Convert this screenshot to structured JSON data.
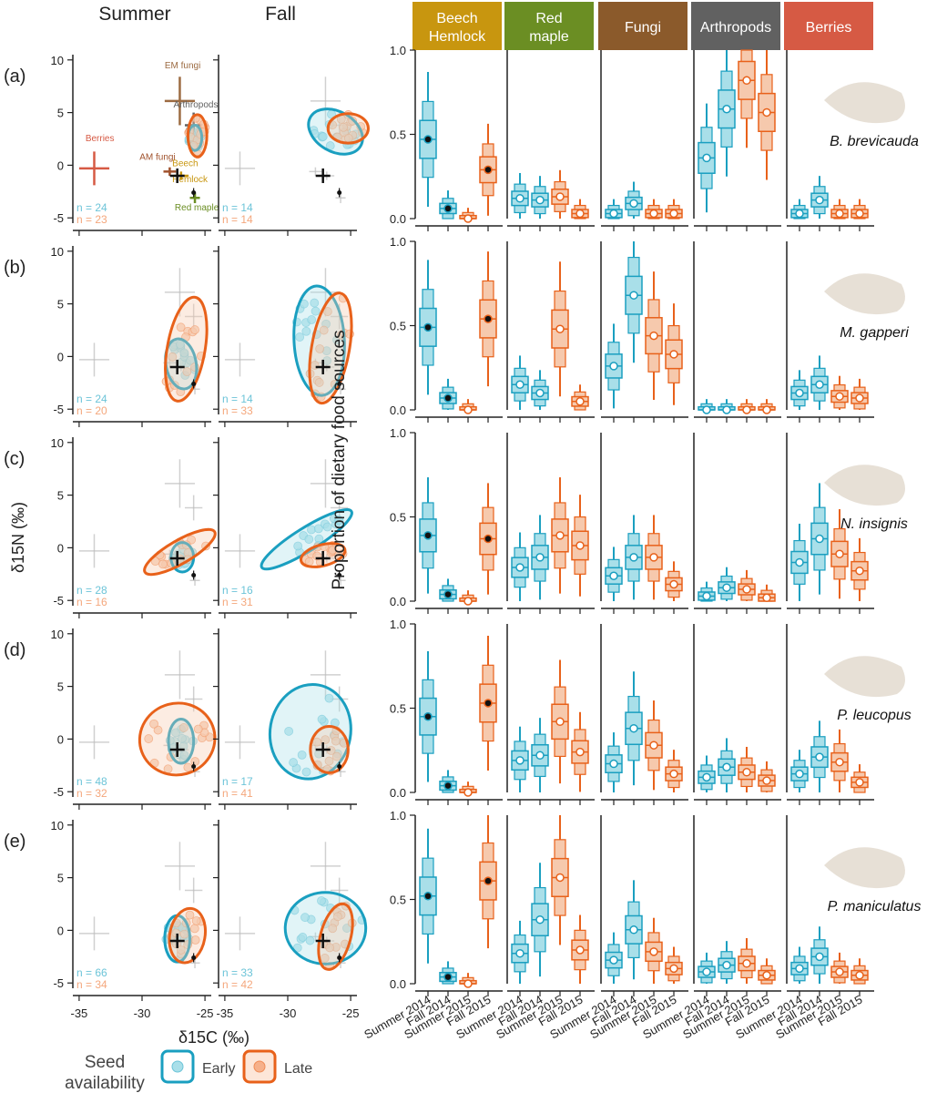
{
  "colors": {
    "early": "#1a9fc0",
    "early_fill": "#a9dfe9",
    "late": "#e8611a",
    "late_fill": "#f6c9ad",
    "cross": "#bdbdbd",
    "beech": "#c8960f",
    "redmaple": "#6b8e23",
    "fungi": "#8b5a2b",
    "arthropods": "#616161",
    "berries": "#d65a44",
    "amfungi": "#a0522d",
    "emfungi": "#9c6b42"
  },
  "isotope": {
    "season_titles": [
      "Summer",
      "Fall"
    ],
    "x_axis_label": "δ15C (‰)",
    "y_axis_label": "δ15N (‰)",
    "x_ticks": [
      -35,
      -30,
      -25
    ],
    "y_ticks": [
      10,
      5,
      0,
      -5
    ],
    "xlim": [
      -35.5,
      -24.5
    ],
    "ylim": [
      -5.5,
      10.5
    ],
    "source_labels": {
      "berries": "Berries",
      "amfungi": "AM fungi",
      "emfungi": "EM fungi",
      "arthropods": "Arthropods",
      "beech": "Beech",
      "hemlock": "Hemlock",
      "redmaple": "Red maple"
    },
    "sources": [
      {
        "key": "berries",
        "x": -33.8,
        "y": -0.3,
        "xe": 1.2,
        "ye": 1.6
      },
      {
        "key": "amfungi",
        "x": -27.8,
        "y": -0.6,
        "xe": 0.5,
        "ye": 0.4
      },
      {
        "key": "emfungi",
        "x": -27.0,
        "y": 6.1,
        "xe": 1.2,
        "ye": 2.3
      },
      {
        "key": "arthropods",
        "x": -25.9,
        "y": 3.8,
        "xe": 0.7,
        "ye": 1.2
      },
      {
        "key": "beech",
        "x": -26.9,
        "y": -1.0,
        "xe": 0.6,
        "ye": 0.4
      },
      {
        "key": "redmaple",
        "x": -25.8,
        "y": -3.1,
        "xe": 0.4,
        "ye": 0.5
      }
    ],
    "panels": [
      {
        "label": "(a)",
        "summer": {
          "n_early": "n = 24",
          "n_late": "n = 23",
          "early": {
            "cx": -25.8,
            "cy": 2.6,
            "rx": 0.55,
            "ry": 1.2,
            "rot": 0
          },
          "late": {
            "cx": -25.6,
            "cy": 2.8,
            "rx": 0.75,
            "ry": 2.0,
            "rot": 0
          }
        },
        "fall": {
          "n_early": "n = 14",
          "n_late": "n = 14",
          "early": {
            "cx": -26.2,
            "cy": 3.2,
            "rx": 2.3,
            "ry": 1.9,
            "rot": 30
          },
          "late": {
            "cx": -25.2,
            "cy": 3.5,
            "rx": 1.6,
            "ry": 1.4,
            "rot": 0
          }
        }
      },
      {
        "label": "(b)",
        "summer": {
          "n_early": "n = 24",
          "n_late": "n = 20",
          "early": {
            "cx": -26.9,
            "cy": -0.7,
            "rx": 1.2,
            "ry": 2.4,
            "rot": -10
          },
          "late": {
            "cx": -26.5,
            "cy": 0.7,
            "rx": 1.5,
            "ry": 5.0,
            "rot": 10
          }
        },
        "fall": {
          "n_early": "n = 14",
          "n_late": "n = 33",
          "early": {
            "cx": -27.5,
            "cy": 1.5,
            "rx": 2.0,
            "ry": 5.2,
            "rot": -3
          },
          "late": {
            "cx": -26.6,
            "cy": 0.8,
            "rx": 1.5,
            "ry": 5.3,
            "rot": 10
          }
        }
      },
      {
        "label": "(c)",
        "summer": {
          "n_early": "n = 28",
          "n_late": "n = 16",
          "early": {
            "cx": -26.8,
            "cy": -0.9,
            "rx": 0.9,
            "ry": 1.4,
            "rot": 0
          },
          "late": {
            "cx": -27.0,
            "cy": -0.4,
            "rx": 3.2,
            "ry": 1.1,
            "rot": -30
          }
        },
        "fall": {
          "n_early": "n = 16",
          "n_late": "n = 31",
          "early": {
            "cx": -28.5,
            "cy": 0.8,
            "rx": 4.2,
            "ry": 1.1,
            "rot": -32
          },
          "late": {
            "cx": -27.2,
            "cy": -0.7,
            "rx": 1.8,
            "ry": 1.0,
            "rot": -15
          }
        }
      },
      {
        "label": "(d)",
        "summer": {
          "n_early": "n = 48",
          "n_late": "n = 32",
          "early": {
            "cx": -26.9,
            "cy": -0.2,
            "rx": 1.0,
            "ry": 2.1,
            "rot": 0
          },
          "late": {
            "cx": -27.2,
            "cy": 0.0,
            "rx": 3.0,
            "ry": 3.4,
            "rot": -15
          }
        },
        "fall": {
          "n_early": "n = 17",
          "n_late": "n = 41",
          "early": {
            "cx": -28.2,
            "cy": 0.7,
            "rx": 3.2,
            "ry": 4.5,
            "rot": 10
          },
          "late": {
            "cx": -26.7,
            "cy": -1.0,
            "rx": 1.5,
            "ry": 2.2,
            "rot": 0
          }
        }
      },
      {
        "label": "(e)",
        "summer": {
          "n_early": "n = 66",
          "n_late": "n = 34",
          "early": {
            "cx": -27.2,
            "cy": -0.8,
            "rx": 1.0,
            "ry": 2.2,
            "rot": 0
          },
          "late": {
            "cx": -26.4,
            "cy": -0.5,
            "rx": 1.4,
            "ry": 2.6,
            "rot": 10
          }
        },
        "fall": {
          "n_early": "n = 33",
          "n_late": "n = 42",
          "early": {
            "cx": -27.0,
            "cy": 0.2,
            "rx": 3.2,
            "ry": 3.4,
            "rot": 0
          },
          "late": {
            "cx": -26.2,
            "cy": -0.6,
            "rx": 1.2,
            "ry": 3.2,
            "rot": 15
          }
        }
      }
    ],
    "consumer": {
      "x": -27.2,
      "y": -1.0
    },
    "tdf": {
      "x": -25.9,
      "y": -2.6
    }
  },
  "diet": {
    "y_axis_label": "Proportion of dietary food sources",
    "y_ticks": [
      "1.0",
      "0.5",
      "0.0"
    ],
    "x_tick_labels": [
      "Summer 2014",
      "Fall 2014",
      "Summer 2015",
      "Fall 2015"
    ],
    "source_headers": [
      {
        "key": "beech",
        "label": [
          "Beech",
          "Hemlock"
        ]
      },
      {
        "key": "redmaple",
        "label": [
          "Red",
          "maple"
        ]
      },
      {
        "key": "fungi",
        "label": [
          "Fungi"
        ]
      },
      {
        "key": "arthropods",
        "label": [
          "Arthropods"
        ]
      },
      {
        "key": "berries",
        "label": [
          "Berries"
        ]
      }
    ],
    "season_groups": [
      "early",
      "early",
      "late",
      "late"
    ],
    "species": [
      {
        "name": "B. brevicauda",
        "medians": [
          [
            0.47,
            0.06,
            0.0,
            0.29
          ],
          [
            0.12,
            0.11,
            0.13,
            0.03
          ],
          [
            0.03,
            0.09,
            0.03,
            0.03
          ],
          [
            0.36,
            0.65,
            0.82,
            0.63
          ],
          [
            0.03,
            0.11,
            0.03,
            0.03
          ]
        ]
      },
      {
        "name": "M. gapperi",
        "medians": [
          [
            0.49,
            0.07,
            0.0,
            0.54
          ],
          [
            0.15,
            0.1,
            0.48,
            0.05
          ],
          [
            0.26,
            0.68,
            0.44,
            0.33
          ],
          [
            0.0,
            0.0,
            0.0,
            0.0
          ],
          [
            0.1,
            0.15,
            0.08,
            0.07
          ]
        ]
      },
      {
        "name": "N. insignis",
        "medians": [
          [
            0.39,
            0.04,
            0.0,
            0.37
          ],
          [
            0.2,
            0.26,
            0.39,
            0.33
          ],
          [
            0.15,
            0.26,
            0.26,
            0.1
          ],
          [
            0.03,
            0.08,
            0.07,
            0.02
          ],
          [
            0.23,
            0.37,
            0.28,
            0.18
          ]
        ]
      },
      {
        "name": "P. leucopus",
        "medians": [
          [
            0.45,
            0.04,
            0.0,
            0.53
          ],
          [
            0.19,
            0.22,
            0.42,
            0.24
          ],
          [
            0.17,
            0.38,
            0.28,
            0.11
          ],
          [
            0.09,
            0.15,
            0.12,
            0.07
          ],
          [
            0.11,
            0.21,
            0.18,
            0.06
          ]
        ]
      },
      {
        "name": "P. maniculatus",
        "medians": [
          [
            0.52,
            0.04,
            0.0,
            0.61
          ],
          [
            0.18,
            0.38,
            0.63,
            0.2
          ],
          [
            0.14,
            0.32,
            0.19,
            0.09
          ],
          [
            0.07,
            0.11,
            0.12,
            0.05
          ],
          [
            0.09,
            0.16,
            0.07,
            0.05
          ]
        ]
      }
    ]
  },
  "legend": {
    "title": [
      "Seed",
      "availability"
    ],
    "early": "Early",
    "late": "Late"
  }
}
